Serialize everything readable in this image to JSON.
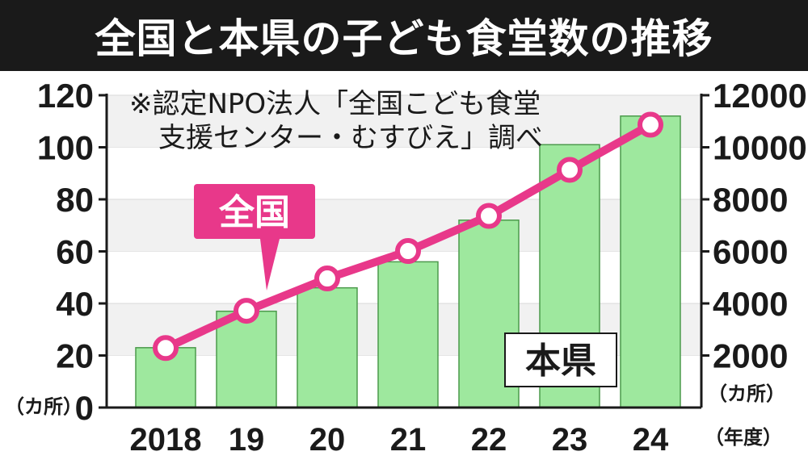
{
  "title": "全国と本県の子ども食堂数の推移",
  "note_line1": "※認定NPO法人「全国こども食堂",
  "note_line2": "支援センター・むすびえ」調べ",
  "left_unit": "（カ所）",
  "right_unit": "（カ所）",
  "x_unit": "（年度）",
  "colors": {
    "bar": "#9ee89e",
    "bar_edge": "#4c9a4c",
    "line": "#e8388a",
    "grid": "#d9d9d9",
    "title_bg": "#1a1a1a"
  },
  "chart_data": {
    "type": "bar+line",
    "categories": [
      "2018",
      "19",
      "20",
      "21",
      "22",
      "23",
      "24"
    ],
    "series": [
      {
        "name": "本県",
        "type": "bar",
        "axis": "left",
        "values": [
          23,
          37,
          46,
          56,
          72,
          101,
          112
        ]
      },
      {
        "name": "全国",
        "type": "line",
        "axis": "right",
        "values": [
          2286,
          3718,
          4960,
          6014,
          7363,
          9132,
          10867
        ]
      }
    ],
    "left_axis": {
      "ylim": [
        0,
        120
      ],
      "ticks": [
        "0",
        "20",
        "40",
        "60",
        "80",
        "100",
        "120"
      ]
    },
    "right_axis": {
      "ylim": [
        0,
        12000
      ],
      "ticks": [
        "2000",
        "4000",
        "6000",
        "8000",
        "10000",
        "12000"
      ]
    },
    "grid": true
  }
}
